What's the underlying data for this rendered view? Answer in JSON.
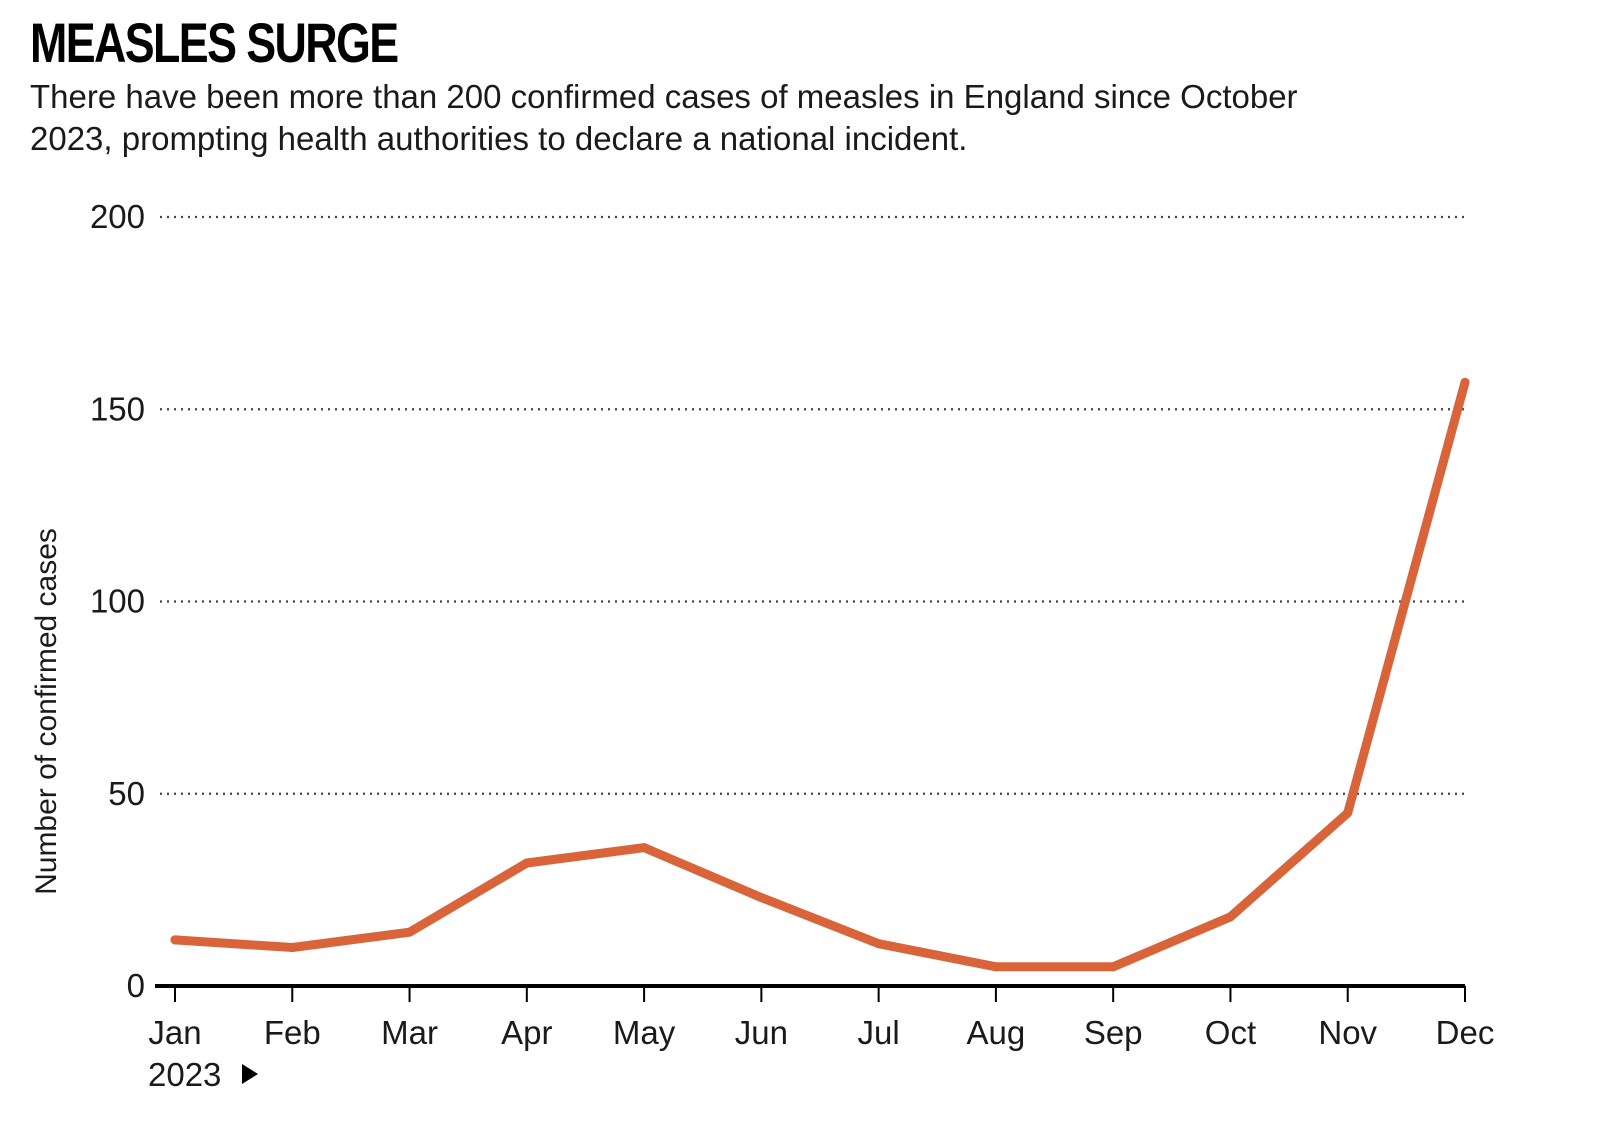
{
  "header": {
    "title": "MEASLES SURGE",
    "subtitle": "There have been more than 200 confirmed cases of measles in England since October 2023, prompting health authorities to declare a national incident."
  },
  "chart_data": {
    "type": "line",
    "title": "MEASLES SURGE",
    "subtitle": "There have been more than 200 confirmed cases of measles in England since October 2023, prompting health authorities to declare a national incident.",
    "xlabel": "",
    "ylabel": "Number of confirmed cases",
    "x_start_label": "2023",
    "categories": [
      "Jan",
      "Feb",
      "Mar",
      "Apr",
      "May",
      "Jun",
      "Jul",
      "Aug",
      "Sep",
      "Oct",
      "Nov",
      "Dec"
    ],
    "series": [
      {
        "values": [
          12,
          10,
          14,
          32,
          36,
          23,
          11,
          5,
          5,
          18,
          45,
          157
        ],
        "color": "#d9643a"
      }
    ],
    "ylim": [
      0,
      200
    ],
    "yticks": [
      0,
      50,
      100,
      150,
      200
    ],
    "grid": true,
    "grid_style": "dotted",
    "legend": "none"
  },
  "icons": {
    "year_marker": "right-triangle-icon"
  }
}
